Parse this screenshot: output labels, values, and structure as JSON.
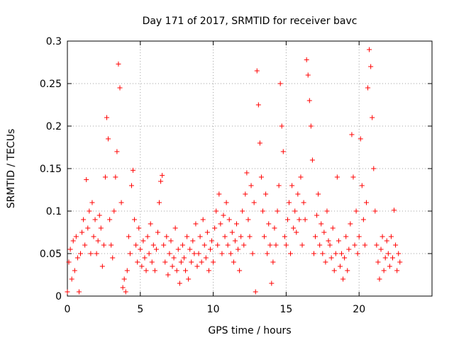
{
  "chart_data": {
    "type": "scatter",
    "title": "Day 171 of 2017, SRMTID for receiver bavc",
    "xlabel": "GPS time / hours",
    "ylabel": "SRMTID / TECUs",
    "xlim": [
      0,
      25
    ],
    "ylim": [
      0,
      0.3
    ],
    "xticks": [
      0,
      5,
      10,
      15,
      20
    ],
    "xtick_labels": [
      "0",
      "5",
      "10",
      "15",
      "20"
    ],
    "yticks": [
      0,
      0.05,
      0.1,
      0.15,
      0.2,
      0.25,
      0.3
    ],
    "ytick_labels": [
      "0",
      "0.05",
      "0.1",
      "0.15",
      "0.2",
      "0.25",
      "0.3"
    ],
    "grid": true,
    "marker": "+",
    "marker_color": "#ff0000",
    "series": [
      {
        "name": "SRMTID",
        "color": "#ff0000",
        "points": [
          [
            0.0,
            0.005
          ],
          [
            0.1,
            0.04
          ],
          [
            0.2,
            0.055
          ],
          [
            0.3,
            0.02
          ],
          [
            0.4,
            0.065
          ],
          [
            0.5,
            0.03
          ],
          [
            0.6,
            0.07
          ],
          [
            0.7,
            0.045
          ],
          [
            0.8,
            0.005
          ],
          [
            0.9,
            0.05
          ],
          [
            1.0,
            0.075
          ],
          [
            1.1,
            0.09
          ],
          [
            1.2,
            0.06
          ],
          [
            1.3,
            0.137
          ],
          [
            1.4,
            0.08
          ],
          [
            1.5,
            0.1
          ],
          [
            1.6,
            0.05
          ],
          [
            1.7,
            0.11
          ],
          [
            1.8,
            0.07
          ],
          [
            1.9,
            0.09
          ],
          [
            2.0,
            0.05
          ],
          [
            2.1,
            0.065
          ],
          [
            2.2,
            0.095
          ],
          [
            2.3,
            0.08
          ],
          [
            2.4,
            0.035
          ],
          [
            2.5,
            0.06
          ],
          [
            2.6,
            0.14
          ],
          [
            2.7,
            0.21
          ],
          [
            2.8,
            0.185
          ],
          [
            2.9,
            0.09
          ],
          [
            3.0,
            0.06
          ],
          [
            3.1,
            0.045
          ],
          [
            3.2,
            0.1
          ],
          [
            3.3,
            0.14
          ],
          [
            3.4,
            0.17
          ],
          [
            3.5,
            0.273
          ],
          [
            3.6,
            0.245
          ],
          [
            3.7,
            0.11
          ],
          [
            3.8,
            0.01
          ],
          [
            3.9,
            0.02
          ],
          [
            4.0,
            0.005
          ],
          [
            4.1,
            0.03
          ],
          [
            4.2,
            0.07
          ],
          [
            4.3,
            0.05
          ],
          [
            4.4,
            0.13
          ],
          [
            4.5,
            0.148
          ],
          [
            4.6,
            0.09
          ],
          [
            4.7,
            0.06
          ],
          [
            4.8,
            0.04
          ],
          [
            4.9,
            0.08
          ],
          [
            5.0,
            0.055
          ],
          [
            5.1,
            0.035
          ],
          [
            5.2,
            0.065
          ],
          [
            5.3,
            0.045
          ],
          [
            5.4,
            0.03
          ],
          [
            5.5,
            0.07
          ],
          [
            5.6,
            0.05
          ],
          [
            5.7,
            0.085
          ],
          [
            5.8,
            0.04
          ],
          [
            5.9,
            0.06
          ],
          [
            6.0,
            0.03
          ],
          [
            6.1,
            0.055
          ],
          [
            6.2,
            0.075
          ],
          [
            6.3,
            0.11
          ],
          [
            6.4,
            0.135
          ],
          [
            6.5,
            0.142
          ],
          [
            6.6,
            0.06
          ],
          [
            6.7,
            0.04
          ],
          [
            6.8,
            0.07
          ],
          [
            6.9,
            0.025
          ],
          [
            7.0,
            0.05
          ],
          [
            7.1,
            0.065
          ],
          [
            7.2,
            0.035
          ],
          [
            7.3,
            0.045
          ],
          [
            7.4,
            0.08
          ],
          [
            7.5,
            0.03
          ],
          [
            7.6,
            0.055
          ],
          [
            7.7,
            0.015
          ],
          [
            7.8,
            0.04
          ],
          [
            7.9,
            0.06
          ],
          [
            8.0,
            0.045
          ],
          [
            8.1,
            0.03
          ],
          [
            8.2,
            0.07
          ],
          [
            8.3,
            0.02
          ],
          [
            8.4,
            0.055
          ],
          [
            8.5,
            0.04
          ],
          [
            8.6,
            0.065
          ],
          [
            8.7,
            0.05
          ],
          [
            8.8,
            0.085
          ],
          [
            8.9,
            0.035
          ],
          [
            9.0,
            0.05
          ],
          [
            9.1,
            0.07
          ],
          [
            9.2,
            0.04
          ],
          [
            9.3,
            0.09
          ],
          [
            9.4,
            0.06
          ],
          [
            9.5,
            0.045
          ],
          [
            9.6,
            0.075
          ],
          [
            9.7,
            0.03
          ],
          [
            9.8,
            0.055
          ],
          [
            9.9,
            0.065
          ],
          [
            10.0,
            0.04
          ],
          [
            10.1,
            0.08
          ],
          [
            10.2,
            0.1
          ],
          [
            10.3,
            0.06
          ],
          [
            10.4,
            0.12
          ],
          [
            10.5,
            0.085
          ],
          [
            10.6,
            0.05
          ],
          [
            10.7,
            0.095
          ],
          [
            10.8,
            0.07
          ],
          [
            10.9,
            0.11
          ],
          [
            11.0,
            0.06
          ],
          [
            11.1,
            0.09
          ],
          [
            11.2,
            0.05
          ],
          [
            11.3,
            0.075
          ],
          [
            11.4,
            0.04
          ],
          [
            11.5,
            0.065
          ],
          [
            11.6,
            0.085
          ],
          [
            11.7,
            0.055
          ],
          [
            11.8,
            0.03
          ],
          [
            11.9,
            0.07
          ],
          [
            12.0,
            0.1
          ],
          [
            12.1,
            0.06
          ],
          [
            12.2,
            0.12
          ],
          [
            12.3,
            0.145
          ],
          [
            12.4,
            0.09
          ],
          [
            12.5,
            0.07
          ],
          [
            12.6,
            0.13
          ],
          [
            12.7,
            0.05
          ],
          [
            12.8,
            0.11
          ],
          [
            12.9,
            0.005
          ],
          [
            13.0,
            0.265
          ],
          [
            13.1,
            0.225
          ],
          [
            13.2,
            0.18
          ],
          [
            13.3,
            0.14
          ],
          [
            13.4,
            0.1
          ],
          [
            13.5,
            0.07
          ],
          [
            13.6,
            0.12
          ],
          [
            13.7,
            0.05
          ],
          [
            13.8,
            0.085
          ],
          [
            13.9,
            0.06
          ],
          [
            14.0,
            0.015
          ],
          [
            14.1,
            0.04
          ],
          [
            14.2,
            0.08
          ],
          [
            14.3,
            0.06
          ],
          [
            14.4,
            0.1
          ],
          [
            14.5,
            0.13
          ],
          [
            14.6,
            0.25
          ],
          [
            14.7,
            0.2
          ],
          [
            14.8,
            0.17
          ],
          [
            14.9,
            0.07
          ],
          [
            15.0,
            0.06
          ],
          [
            15.1,
            0.09
          ],
          [
            15.2,
            0.11
          ],
          [
            15.3,
            0.05
          ],
          [
            15.4,
            0.13
          ],
          [
            15.5,
            0.08
          ],
          [
            15.6,
            0.1
          ],
          [
            15.7,
            0.075
          ],
          [
            15.8,
            0.12
          ],
          [
            15.9,
            0.09
          ],
          [
            16.0,
            0.14
          ],
          [
            16.1,
            0.06
          ],
          [
            16.2,
            0.11
          ],
          [
            16.3,
            0.09
          ],
          [
            16.4,
            0.278
          ],
          [
            16.5,
            0.26
          ],
          [
            16.6,
            0.23
          ],
          [
            16.7,
            0.2
          ],
          [
            16.8,
            0.16
          ],
          [
            16.9,
            0.05
          ],
          [
            17.0,
            0.07
          ],
          [
            17.1,
            0.095
          ],
          [
            17.2,
            0.12
          ],
          [
            17.3,
            0.06
          ],
          [
            17.4,
            0.085
          ],
          [
            17.5,
            0.05
          ],
          [
            17.6,
            0.075
          ],
          [
            17.7,
            0.04
          ],
          [
            17.8,
            0.1
          ],
          [
            17.9,
            0.065
          ],
          [
            18.0,
            0.06
          ],
          [
            18.1,
            0.045
          ],
          [
            18.2,
            0.08
          ],
          [
            18.3,
            0.03
          ],
          [
            18.4,
            0.05
          ],
          [
            18.5,
            0.14
          ],
          [
            18.6,
            0.065
          ],
          [
            18.7,
            0.035
          ],
          [
            18.8,
            0.05
          ],
          [
            18.9,
            0.02
          ],
          [
            19.0,
            0.045
          ],
          [
            19.1,
            0.07
          ],
          [
            19.2,
            0.03
          ],
          [
            19.3,
            0.055
          ],
          [
            19.4,
            0.085
          ],
          [
            19.5,
            0.19
          ],
          [
            19.6,
            0.14
          ],
          [
            19.7,
            0.06
          ],
          [
            19.8,
            0.1
          ],
          [
            19.9,
            0.05
          ],
          [
            20.0,
            0.07
          ],
          [
            20.1,
            0.185
          ],
          [
            20.2,
            0.13
          ],
          [
            20.3,
            0.09
          ],
          [
            20.4,
            0.06
          ],
          [
            20.5,
            0.11
          ],
          [
            20.6,
            0.245
          ],
          [
            20.7,
            0.29
          ],
          [
            20.8,
            0.27
          ],
          [
            20.9,
            0.21
          ],
          [
            21.0,
            0.15
          ],
          [
            21.1,
            0.1
          ],
          [
            21.2,
            0.06
          ],
          [
            21.3,
            0.04
          ],
          [
            21.4,
            0.02
          ],
          [
            21.5,
            0.055
          ],
          [
            21.6,
            0.07
          ],
          [
            21.7,
            0.03
          ],
          [
            21.8,
            0.045
          ],
          [
            21.9,
            0.065
          ],
          [
            22.0,
            0.05
          ],
          [
            22.1,
            0.035
          ],
          [
            22.2,
            0.07
          ],
          [
            22.3,
            0.045
          ],
          [
            22.4,
            0.101
          ],
          [
            22.5,
            0.06
          ],
          [
            22.6,
            0.03
          ],
          [
            22.7,
            0.05
          ],
          [
            22.8,
            0.04
          ]
        ]
      }
    ]
  }
}
